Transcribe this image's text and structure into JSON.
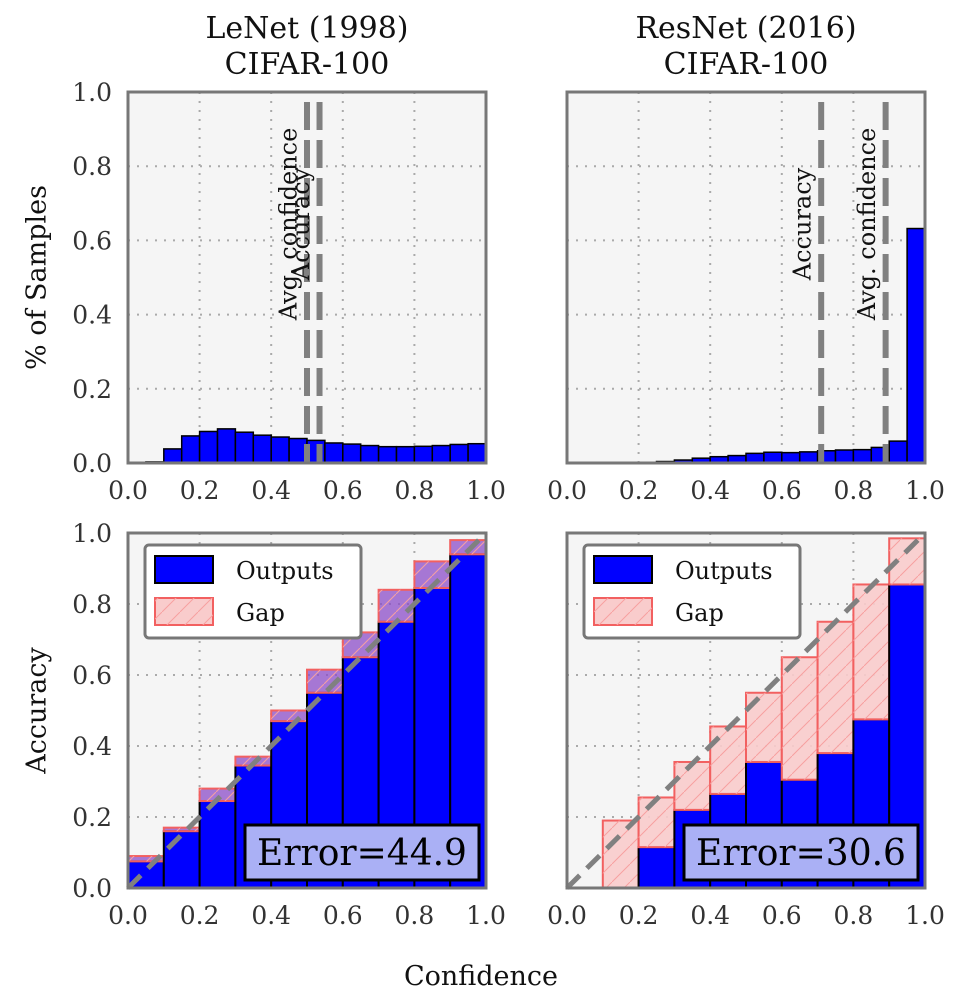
{
  "chart_data": [
    {
      "type": "bar",
      "title": "LeNet (1998)\nCIFAR-100",
      "ylabel": "% of Samples",
      "xlim": [
        0,
        1
      ],
      "ylim": [
        0,
        1
      ],
      "xticks": [
        "0.0",
        "0.2",
        "0.4",
        "0.6",
        "0.8",
        "1.0"
      ],
      "yticks": [
        "0.0",
        "0.2",
        "0.4",
        "0.6",
        "0.8",
        "1.0"
      ],
      "grid": true,
      "bin_width": 0.05,
      "bin_starts": [
        0.0,
        0.05,
        0.1,
        0.15,
        0.2,
        0.25,
        0.3,
        0.35,
        0.4,
        0.45,
        0.5,
        0.55,
        0.6,
        0.65,
        0.7,
        0.75,
        0.8,
        0.85,
        0.9,
        0.95
      ],
      "values": [
        0.0,
        0.003,
        0.038,
        0.073,
        0.085,
        0.092,
        0.083,
        0.075,
        0.07,
        0.066,
        0.061,
        0.054,
        0.051,
        0.047,
        0.044,
        0.044,
        0.045,
        0.047,
        0.05,
        0.052
      ],
      "vlines": [
        {
          "label": "Avg. confidence",
          "x": 0.5
        },
        {
          "label": "Accuracy",
          "x": 0.535
        }
      ]
    },
    {
      "type": "bar",
      "title": "ResNet (2016)\nCIFAR-100",
      "xlim": [
        0,
        1
      ],
      "ylim": [
        0,
        1
      ],
      "xticks": [
        "0.0",
        "0.2",
        "0.4",
        "0.6",
        "0.8",
        "1.0"
      ],
      "grid": true,
      "bin_width": 0.05,
      "bin_starts": [
        0.0,
        0.05,
        0.1,
        0.15,
        0.2,
        0.25,
        0.3,
        0.35,
        0.4,
        0.45,
        0.5,
        0.55,
        0.6,
        0.65,
        0.7,
        0.75,
        0.8,
        0.85,
        0.9,
        0.95
      ],
      "values": [
        0.0,
        0.0,
        0.0,
        0.001,
        0.002,
        0.004,
        0.008,
        0.013,
        0.017,
        0.02,
        0.026,
        0.029,
        0.028,
        0.03,
        0.033,
        0.035,
        0.036,
        0.042,
        0.059,
        0.632
      ],
      "vlines": [
        {
          "label": "Accuracy",
          "x": 0.71
        },
        {
          "label": "Avg. confidence",
          "x": 0.89
        }
      ]
    },
    {
      "type": "bar",
      "xlabel": "Confidence",
      "ylabel": "Accuracy",
      "xlim": [
        0,
        1
      ],
      "ylim": [
        0,
        1
      ],
      "xticks": [
        "0.0",
        "0.2",
        "0.4",
        "0.6",
        "0.8",
        "1.0"
      ],
      "yticks": [
        "0.0",
        "0.2",
        "0.4",
        "0.6",
        "0.8",
        "1.0"
      ],
      "grid": true,
      "legend": [
        "Outputs",
        "Gap"
      ],
      "legend_position": "upper-left",
      "bin_width": 0.1,
      "bin_starts": [
        0.0,
        0.1,
        0.2,
        0.3,
        0.4,
        0.5,
        0.6,
        0.7,
        0.8,
        0.9
      ],
      "outputs": [
        0.075,
        0.16,
        0.245,
        0.345,
        0.47,
        0.55,
        0.65,
        0.75,
        0.845,
        0.94
      ],
      "gap_tops": [
        0.09,
        0.17,
        0.28,
        0.37,
        0.5,
        0.615,
        0.72,
        0.84,
        0.92,
        0.98
      ],
      "annotation": "Error=44.9",
      "diagonal": true
    },
    {
      "type": "bar",
      "xlim": [
        0,
        1
      ],
      "ylim": [
        0,
        1
      ],
      "xticks": [
        "0.0",
        "0.2",
        "0.4",
        "0.6",
        "0.8",
        "1.0"
      ],
      "grid": true,
      "legend": [
        "Outputs",
        "Gap"
      ],
      "legend_position": "upper-left",
      "bin_width": 0.1,
      "bin_starts": [
        0.0,
        0.1,
        0.2,
        0.3,
        0.4,
        0.5,
        0.6,
        0.7,
        0.8,
        0.9
      ],
      "outputs": [
        0.0,
        0.0,
        0.115,
        0.22,
        0.265,
        0.355,
        0.305,
        0.38,
        0.475,
        0.855
      ],
      "gap_tops": [
        0.0,
        0.19,
        0.255,
        0.355,
        0.455,
        0.55,
        0.65,
        0.75,
        0.855,
        0.985
      ],
      "annotation": "Error=30.6",
      "diagonal": true
    }
  ],
  "shared": {
    "xlabel": "Confidence"
  },
  "colors": {
    "bar": "#0000ff",
    "gap_edge": "#f26060",
    "gap_fill": "#f9cccc",
    "gap_over_fill": "#8b4cc8",
    "background": "#f5f5f5",
    "diagonal": "#808080"
  }
}
